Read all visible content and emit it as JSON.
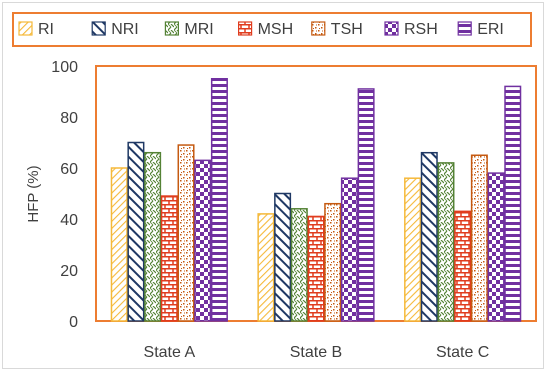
{
  "chart_data": {
    "type": "bar",
    "categories": [
      "State A",
      "State B",
      "State C"
    ],
    "ylabel": "HFP (%)",
    "xlabel": "",
    "ylim": [
      0,
      100
    ],
    "yticks": [
      0,
      20,
      40,
      60,
      80,
      100
    ],
    "grid": false,
    "legend_position": "top",
    "series": [
      {
        "name": "RI",
        "values": [
          60,
          42,
          56
        ],
        "color": "#f5b93a",
        "pattern": "thin-diagonal-down"
      },
      {
        "name": "NRI",
        "values": [
          70,
          50,
          66
        ],
        "color": "#1f3864",
        "pattern": "wide-diagonal-up"
      },
      {
        "name": "MRI",
        "values": [
          66,
          44,
          62
        ],
        "color": "#548235",
        "pattern": "check-weave"
      },
      {
        "name": "MSH",
        "values": [
          49,
          41,
          43
        ],
        "color": "#e03c1e",
        "pattern": "brick"
      },
      {
        "name": "TSH",
        "values": [
          69,
          46,
          65
        ],
        "color": "#c55a11",
        "pattern": "confetti"
      },
      {
        "name": "RSH",
        "values": [
          63,
          56,
          58
        ],
        "color": "#7030a0",
        "pattern": "large-checker"
      },
      {
        "name": "ERI",
        "values": [
          95,
          91,
          92
        ],
        "color": "#7030a0",
        "pattern": "horizontal-stripes"
      }
    ]
  }
}
